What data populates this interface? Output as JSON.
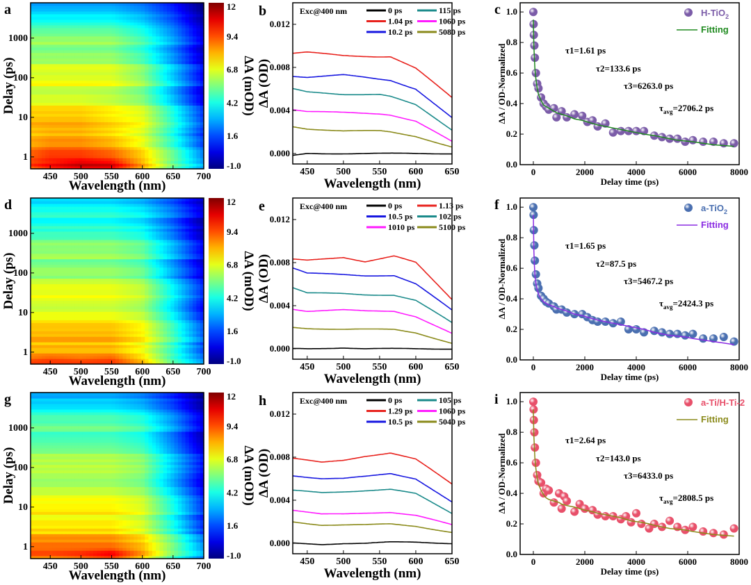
{
  "chart_data": [
    {
      "panel": "a",
      "type": "heatmap",
      "xlabel": "Wavelength (nm)",
      "ylabel": "Delay (ps)",
      "xlim": [
        418,
        700
      ],
      "ylim": [
        0.5,
        7800
      ],
      "yscale": "log",
      "xticks": [
        "450",
        "500",
        "550",
        "600",
        "650",
        "700"
      ],
      "yticks": [
        "1",
        "10",
        "100",
        "1000"
      ],
      "colorbar": {
        "label": "ΔA (mOD)",
        "range": [
          -1,
          12
        ],
        "ticks": [
          "12",
          "9.4",
          "6.8",
          "4.2",
          "1.6",
          "-1.0"
        ]
      },
      "wavelengths": [
        420,
        450,
        500,
        550,
        600,
        650,
        700
      ],
      "delays": [
        0.5,
        0.7,
        1,
        10,
        100,
        1000,
        7800
      ],
      "values": [
        [
          9,
          10,
          10.5,
          10.5,
          8,
          5,
          2.5
        ],
        [
          9.5,
          10,
          10.8,
          10.5,
          8,
          5,
          2.5
        ],
        [
          9,
          9.5,
          9.5,
          9,
          7.5,
          5,
          2
        ],
        [
          7.5,
          7.5,
          7.5,
          7,
          6.5,
          4,
          1
        ],
        [
          6.5,
          6.5,
          6.5,
          6.5,
          5.5,
          3,
          0.3
        ],
        [
          5.5,
          5.5,
          5.5,
          5.5,
          4.5,
          2.5,
          0
        ],
        [
          3,
          3,
          3,
          3,
          2.5,
          1.3,
          -0.6
        ]
      ]
    },
    {
      "panel": "b",
      "type": "line",
      "annotation": "Exc@400 nm",
      "xlabel": "Wavelength (nm)",
      "ylabel": "ΔA (OD)",
      "xlim": [
        430,
        650
      ],
      "ylim": [
        -0.00097,
        0.014
      ],
      "xticks": [
        "450",
        "500",
        "550",
        "600",
        "650"
      ],
      "yticks": [
        "0.000",
        "0.004",
        "0.008",
        "0.012"
      ],
      "x": [
        430,
        450,
        500,
        550,
        565,
        600,
        650
      ],
      "series": [
        {
          "name": "0 ps",
          "color": "#000000",
          "values": [
            -0.0002,
            0,
            0,
            0,
            0,
            0,
            0
          ]
        },
        {
          "name": "115 ps",
          "color": "#1a8a8a",
          "values": [
            0.006,
            0.0057,
            0.0055,
            0.0055,
            0.0053,
            0.0045,
            0.0022
          ]
        },
        {
          "name": "1.04 ps",
          "color": "#e8211c",
          "values": [
            0.0093,
            0.0094,
            0.0091,
            0.009,
            0.009,
            0.0079,
            0.0052
          ]
        },
        {
          "name": "1060 ps",
          "color": "#ff1aff",
          "values": [
            0.0041,
            0.0039,
            0.0038,
            0.0037,
            0.0036,
            0.003,
            0.0011
          ]
        },
        {
          "name": "10.2 ps",
          "color": "#1616e0",
          "values": [
            0.0072,
            0.0071,
            0.0073,
            0.0069,
            0.0068,
            0.006,
            0.0033
          ]
        },
        {
          "name": "5080 ps",
          "color": "#8a8a1a",
          "values": [
            0.0025,
            0.0023,
            0.0021,
            0.0021,
            0.002,
            0.0016,
            0.0006
          ]
        }
      ]
    },
    {
      "panel": "c",
      "type": "scatter",
      "xlabel": "Delay time (ps)",
      "ylabel": "ΔA / OD-Normalized",
      "xlim": [
        -513,
        8000
      ],
      "ylim": [
        0,
        1.06
      ],
      "xticks": [
        "0",
        "2000",
        "4000",
        "6000",
        "8000"
      ],
      "yticks": [
        "0.0",
        "0.2",
        "0.4",
        "0.6",
        "0.8",
        "1.0"
      ],
      "legend": {
        "sample": "H-TiO",
        "sample_sub": "2",
        "fit": "Fitting"
      },
      "point_color": "#7b5ca8",
      "fit_color": "#1f8a1f",
      "taus": {
        "t1": "τ1=1.61 ps",
        "t2": "τ2=133.6 ps",
        "t3": "τ3=6263.0 ps",
        "tavg_base": "τ",
        "tavg_sub": "avg",
        "tavg_value": "=2706.2 ps"
      },
      "x": [
        0,
        10,
        20,
        40,
        60,
        100,
        150,
        200,
        300,
        400,
        500,
        600,
        800,
        900,
        1100,
        1300,
        1600,
        1900,
        2100,
        2300,
        2500,
        2800,
        3100,
        3400,
        3700,
        4000,
        4300,
        4700,
        5000,
        5300,
        5600,
        5900,
        6200,
        6600,
        7000,
        7400,
        7800
      ],
      "y": [
        1.0,
        0.92,
        0.85,
        0.78,
        0.7,
        0.6,
        0.53,
        0.5,
        0.44,
        0.4,
        0.38,
        0.36,
        0.37,
        0.31,
        0.35,
        0.31,
        0.33,
        0.32,
        0.28,
        0.29,
        0.25,
        0.27,
        0.21,
        0.22,
        0.22,
        0.22,
        0.22,
        0.19,
        0.18,
        0.17,
        0.17,
        0.15,
        0.16,
        0.15,
        0.15,
        0.14,
        0.14
      ],
      "fit": [
        0.95,
        0.85,
        0.78,
        0.7,
        0.63,
        0.56,
        0.5,
        0.46,
        0.42,
        0.39,
        0.38,
        0.37,
        0.35,
        0.34,
        0.33,
        0.32,
        0.3,
        0.29,
        0.28,
        0.27,
        0.26,
        0.25,
        0.24,
        0.23,
        0.22,
        0.21,
        0.2,
        0.19,
        0.18,
        0.17,
        0.16,
        0.155,
        0.15,
        0.14,
        0.13,
        0.125,
        0.12
      ]
    },
    {
      "panel": "d",
      "type": "heatmap",
      "xlabel": "Wavelength (nm)",
      "ylabel": "Delay (ps)",
      "xlim": [
        418,
        700
      ],
      "ylim": [
        0.5,
        7800
      ],
      "yscale": "log",
      "xticks": [
        "450",
        "500",
        "550",
        "600",
        "650",
        "700"
      ],
      "yticks": [
        "1",
        "10",
        "100",
        "1000"
      ],
      "colorbar": {
        "label": "ΔA (mOD)",
        "range": [
          -1,
          12
        ],
        "ticks": [
          "12",
          "9.4",
          "6.8",
          "4.2",
          "1.6",
          "-1.0"
        ]
      },
      "wavelengths": [
        420,
        450,
        500,
        550,
        600,
        650,
        700
      ],
      "delays": [
        0.5,
        0.7,
        1,
        10,
        100,
        1000,
        7800
      ],
      "values": [
        [
          9.5,
          9.5,
          9.5,
          9.5,
          8,
          5,
          2.5
        ],
        [
          9.5,
          9.8,
          9.5,
          9.8,
          8,
          5,
          2.5
        ],
        [
          8.5,
          8.5,
          8.5,
          8.5,
          7.5,
          5,
          2
        ],
        [
          7,
          7,
          7,
          7,
          6.5,
          4,
          1
        ],
        [
          6,
          6,
          6,
          6,
          5.5,
          3,
          0.5
        ],
        [
          5,
          5,
          5,
          5,
          4.5,
          2.5,
          0
        ],
        [
          3,
          3,
          3,
          3,
          2.5,
          1.3,
          -0.5
        ]
      ]
    },
    {
      "panel": "e",
      "type": "line",
      "annotation": "Exc@400 nm",
      "xlabel": "Wavelength (nm)",
      "ylabel": "ΔA (OD)",
      "xlim": [
        430,
        650
      ],
      "ylim": [
        -0.00097,
        0.014
      ],
      "xticks": [
        "450",
        "500",
        "550",
        "600",
        "650"
      ],
      "yticks": [
        "0.000",
        "0.004",
        "0.008",
        "0.012"
      ],
      "x": [
        430,
        450,
        500,
        530,
        570,
        600,
        650
      ],
      "series": [
        {
          "name": "0 ps",
          "color": "#000000",
          "values": [
            0,
            0,
            0.0001,
            0,
            0,
            0,
            0
          ]
        },
        {
          "name": "1.13 ps",
          "color": "#e8211c",
          "values": [
            0.0083,
            0.0082,
            0.0085,
            0.0081,
            0.0086,
            0.008,
            0.0046
          ]
        },
        {
          "name": "10.5 ps",
          "color": "#1616e0",
          "values": [
            0.0075,
            0.007,
            0.0069,
            0.0068,
            0.0068,
            0.006,
            0.0036
          ]
        },
        {
          "name": "102 ps",
          "color": "#1a8a8a",
          "values": [
            0.0057,
            0.0052,
            0.0051,
            0.005,
            0.005,
            0.0045,
            0.0024
          ]
        },
        {
          "name": "1010 ps",
          "color": "#ff1aff",
          "values": [
            0.0037,
            0.0035,
            0.0036,
            0.0035,
            0.0035,
            0.003,
            0.0014
          ]
        },
        {
          "name": "5100 ps",
          "color": "#8a8a1a",
          "values": [
            0.002,
            0.0019,
            0.0018,
            0.0018,
            0.0018,
            0.0015,
            0.0005
          ]
        }
      ]
    },
    {
      "panel": "f",
      "type": "scatter",
      "xlabel": "Delay time (ps)",
      "ylabel": "ΔA / OD-Normalized",
      "xlim": [
        -513,
        8000
      ],
      "ylim": [
        0,
        1.06
      ],
      "xticks": [
        "0",
        "2000",
        "4000",
        "6000",
        "8000"
      ],
      "yticks": [
        "0.0",
        "0.2",
        "0.4",
        "0.6",
        "0.8",
        "1.0"
      ],
      "legend": {
        "sample": "a-TiO",
        "sample_sub": "2",
        "fit": "Fitting"
      },
      "point_color": "#4a6fb0",
      "fit_color": "#8a2be2",
      "taus": {
        "t1": "τ1=1.65 ps",
        "t2": "τ2=87.5 ps",
        "t3": "τ3=5467.2 ps",
        "tavg_base": "τ",
        "tavg_sub": "avg",
        "tavg_value": "=2424.3 ps"
      },
      "x": [
        0,
        10,
        20,
        40,
        60,
        100,
        150,
        200,
        300,
        400,
        500,
        600,
        800,
        900,
        1100,
        1300,
        1600,
        1900,
        2100,
        2300,
        2500,
        2800,
        3100,
        3400,
        3700,
        4000,
        4300,
        4700,
        5000,
        5300,
        5600,
        5900,
        6200,
        6600,
        7000,
        7400,
        7800
      ],
      "y": [
        1.0,
        0.95,
        0.85,
        0.75,
        0.65,
        0.56,
        0.5,
        0.47,
        0.42,
        0.4,
        0.38,
        0.37,
        0.35,
        0.33,
        0.33,
        0.31,
        0.3,
        0.3,
        0.28,
        0.26,
        0.25,
        0.25,
        0.24,
        0.25,
        0.2,
        0.2,
        0.18,
        0.19,
        0.18,
        0.17,
        0.17,
        0.16,
        0.17,
        0.14,
        0.14,
        0.15,
        0.12
      ],
      "fit": [
        0.95,
        0.82,
        0.72,
        0.62,
        0.56,
        0.5,
        0.46,
        0.43,
        0.4,
        0.38,
        0.37,
        0.36,
        0.35,
        0.34,
        0.33,
        0.32,
        0.3,
        0.29,
        0.28,
        0.27,
        0.26,
        0.25,
        0.24,
        0.23,
        0.22,
        0.21,
        0.2,
        0.18,
        0.17,
        0.16,
        0.155,
        0.15,
        0.14,
        0.13,
        0.12,
        0.11,
        0.1
      ]
    },
    {
      "panel": "g",
      "type": "heatmap",
      "xlabel": "Wavelength (nm)",
      "ylabel": "Delay (ps)",
      "xlim": [
        418,
        700
      ],
      "ylim": [
        0.5,
        7800
      ],
      "yscale": "log",
      "xticks": [
        "450",
        "500",
        "550",
        "600",
        "650",
        "700"
      ],
      "yticks": [
        "1",
        "10",
        "100",
        "1000"
      ],
      "colorbar": {
        "label": "ΔA (mOD)",
        "range": [
          -1,
          12
        ],
        "ticks": [
          "12",
          "9.4",
          "6.8",
          "4.2",
          "1.6",
          "-1.0"
        ]
      },
      "wavelengths": [
        420,
        450,
        500,
        550,
        600,
        650,
        700
      ],
      "delays": [
        0.5,
        0.7,
        1,
        10,
        100,
        1000,
        7800
      ],
      "values": [
        [
          9,
          9,
          9.5,
          10.2,
          8,
          5,
          2.5
        ],
        [
          9,
          9,
          9.3,
          10,
          8,
          5,
          2.5
        ],
        [
          8.5,
          8.5,
          8.5,
          8.5,
          7.5,
          5,
          2
        ],
        [
          7,
          7,
          7,
          7,
          6.5,
          4,
          1
        ],
        [
          6,
          6,
          6,
          6,
          5.5,
          3,
          0.5
        ],
        [
          5,
          5,
          5,
          5,
          4.5,
          2.5,
          0
        ],
        [
          3,
          3,
          3,
          3,
          2.5,
          1.3,
          -0.5
        ]
      ]
    },
    {
      "panel": "h",
      "type": "line",
      "annotation": "Exc@400 nm",
      "xlabel": "Wavelength (nm)",
      "ylabel": "ΔA (OD)",
      "xlim": [
        430,
        650
      ],
      "ylim": [
        -0.00097,
        0.014
      ],
      "xticks": [
        "450",
        "500",
        "550",
        "600",
        "650"
      ],
      "yticks": [
        "0.000",
        "0.004",
        "0.008",
        "0.012"
      ],
      "x": [
        430,
        470,
        500,
        530,
        565,
        600,
        650
      ],
      "series": [
        {
          "name": "0 ps",
          "color": "#000000",
          "values": [
            0,
            -0.0001,
            0,
            0,
            0.0001,
            0.0001,
            0
          ]
        },
        {
          "name": "105 ps",
          "color": "#1a8a8a",
          "values": [
            0.0049,
            0.0047,
            0.0048,
            0.0049,
            0.005,
            0.0046,
            0.0028
          ]
        },
        {
          "name": "1.29 ps",
          "color": "#e8211c",
          "values": [
            0.0079,
            0.0075,
            0.0077,
            0.0081,
            0.0084,
            0.0078,
            0.0055
          ]
        },
        {
          "name": "1060 ps",
          "color": "#ff1aff",
          "values": [
            0.0031,
            0.0027,
            0.0027,
            0.0028,
            0.0029,
            0.0026,
            0.0017
          ]
        },
        {
          "name": "10.5 ps",
          "color": "#1616e0",
          "values": [
            0.0063,
            0.006,
            0.006,
            0.0062,
            0.0065,
            0.006,
            0.0038
          ]
        },
        {
          "name": "5040 ps",
          "color": "#8a8a1a",
          "values": [
            0.002,
            0.0017,
            0.0017,
            0.0017,
            0.0018,
            0.0016,
            0.001
          ]
        }
      ]
    },
    {
      "panel": "i",
      "type": "scatter",
      "xlabel": "Delay time (ps)",
      "ylabel": "ΔA / OD-Normalized",
      "xlim": [
        -513,
        8000
      ],
      "ylim": [
        0,
        1.06
      ],
      "xticks": [
        "0",
        "2000",
        "4000",
        "6000",
        "8000"
      ],
      "yticks": [
        "0.0",
        "0.2",
        "0.4",
        "0.6",
        "0.8",
        "1.0"
      ],
      "legend": {
        "sample": "a-Ti/H-Ti-2",
        "sample_sub": "",
        "fit": "Fitting"
      },
      "point_color": "#e8506a",
      "fit_color": "#8a8a1a",
      "taus": {
        "t1": "τ1=2.64 ps",
        "t2": "τ2=143.0 ps",
        "t3": "τ3=6433.0 ps",
        "tavg_base": "τ",
        "tavg_sub": "avg",
        "tavg_value": "=2808.5 ps"
      },
      "x": [
        0,
        10,
        20,
        40,
        60,
        100,
        150,
        200,
        300,
        400,
        500,
        600,
        800,
        1000,
        1100,
        1200,
        1300,
        1600,
        1800,
        2000,
        2300,
        2500,
        2800,
        3100,
        3400,
        3600,
        3800,
        4000,
        4200,
        4500,
        4700,
        5000,
        5300,
        5600,
        5900,
        6200,
        6600,
        7000,
        7400,
        7800
      ],
      "y": [
        1.0,
        0.95,
        0.88,
        0.8,
        0.7,
        0.6,
        0.52,
        0.48,
        0.47,
        0.4,
        0.43,
        0.42,
        0.34,
        0.4,
        0.3,
        0.38,
        0.35,
        0.28,
        0.33,
        0.3,
        0.29,
        0.26,
        0.25,
        0.25,
        0.23,
        0.25,
        0.21,
        0.27,
        0.2,
        0.17,
        0.2,
        0.18,
        0.22,
        0.18,
        0.16,
        0.18,
        0.15,
        0.14,
        0.13,
        0.17
      ],
      "fit": [
        0.95,
        0.85,
        0.78,
        0.7,
        0.63,
        0.56,
        0.5,
        0.46,
        0.42,
        0.39,
        0.37,
        0.36,
        0.35,
        0.34,
        0.33,
        0.325,
        0.32,
        0.31,
        0.3,
        0.29,
        0.28,
        0.27,
        0.26,
        0.25,
        0.24,
        0.23,
        0.22,
        0.215,
        0.21,
        0.2,
        0.19,
        0.18,
        0.17,
        0.165,
        0.16,
        0.15,
        0.14,
        0.13,
        0.125,
        0.12
      ]
    }
  ]
}
